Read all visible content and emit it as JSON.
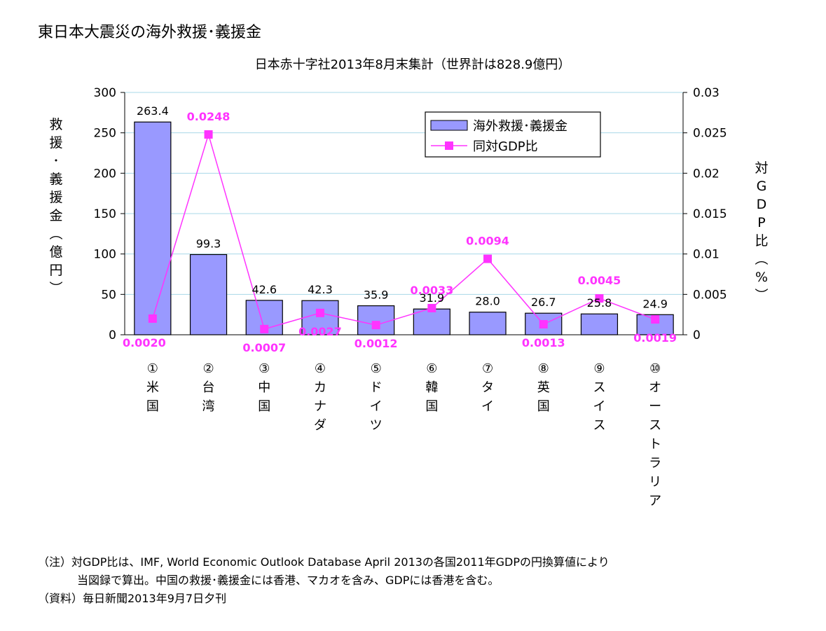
{
  "page_title": "東日本大震災の海外救援･義援金",
  "chart_data": {
    "type": "bar",
    "title": "日本赤十字社2013年8月末集計（世界計は828.9億円）",
    "categories": [
      [
        "①",
        "米",
        "国"
      ],
      [
        "②",
        "台",
        "湾"
      ],
      [
        "③",
        "中",
        "国"
      ],
      [
        "④",
        "カ",
        "ナ",
        "ダ"
      ],
      [
        "⑤",
        "ド",
        "イ",
        "ツ"
      ],
      [
        "⑥",
        "韓",
        "国"
      ],
      [
        "⑦",
        "タ",
        "イ"
      ],
      [
        "⑧",
        "英",
        "国"
      ],
      [
        "⑨",
        "ス",
        "イ",
        "ス"
      ],
      [
        "⑩",
        "オ",
        "ー",
        "ス",
        "ト",
        "ラ",
        "リ",
        "ア"
      ]
    ],
    "series": [
      {
        "name": "海外救援･義援金",
        "type": "bar",
        "axis": "left",
        "color": "#9999ff",
        "values": [
          263.4,
          99.3,
          42.6,
          42.3,
          35.9,
          31.9,
          28.0,
          26.7,
          25.8,
          24.9
        ],
        "labels": [
          "263.4",
          "99.3",
          "42.6",
          "42.3",
          "35.9",
          "31.9",
          "28.0",
          "26.7",
          "25.8",
          "24.9"
        ]
      },
      {
        "name": "同対GDP比",
        "type": "line",
        "axis": "right",
        "color": "#ff33ff",
        "values": [
          0.002,
          0.0248,
          0.0007,
          0.0027,
          0.0012,
          0.0033,
          0.0094,
          0.0013,
          0.0045,
          0.0019
        ],
        "labels": [
          "0.0020",
          "0.0248",
          "0.0007",
          "0.0027",
          "0.0012",
          "0.0033",
          "0.0094",
          "0.0013",
          "0.0045",
          "0.0019"
        ]
      }
    ],
    "y_left": {
      "label_chars": [
        "救",
        "援",
        "･",
        "義",
        "援",
        "金",
        "︵",
        "億",
        "円",
        "︶"
      ],
      "range": [
        0,
        300
      ],
      "ticks": [
        "0",
        "50",
        "100",
        "150",
        "200",
        "250",
        "300"
      ]
    },
    "y_right": {
      "label_chars": [
        "対",
        "G",
        "D",
        "P",
        "比",
        "︵",
        "%",
        "︶"
      ],
      "range": [
        0,
        0.03
      ],
      "ticks": [
        "0",
        "0.005",
        "0.01",
        "0.015",
        "0.02",
        "0.025",
        "0.03"
      ]
    },
    "grid": true,
    "grid_color": "#a8d8e8",
    "legend_position": "top-right"
  },
  "notes": {
    "line1": "（注）対GDP比は、IMF, World Economic Outlook Database April 2013の各国2011年GDPの円換算値により",
    "line2": "当図録で算出。中国の救援･義援金には香港、マカオを含み、GDPには香港を含む。",
    "line3": "（資料）毎日新聞2013年9月7日夕刊"
  }
}
